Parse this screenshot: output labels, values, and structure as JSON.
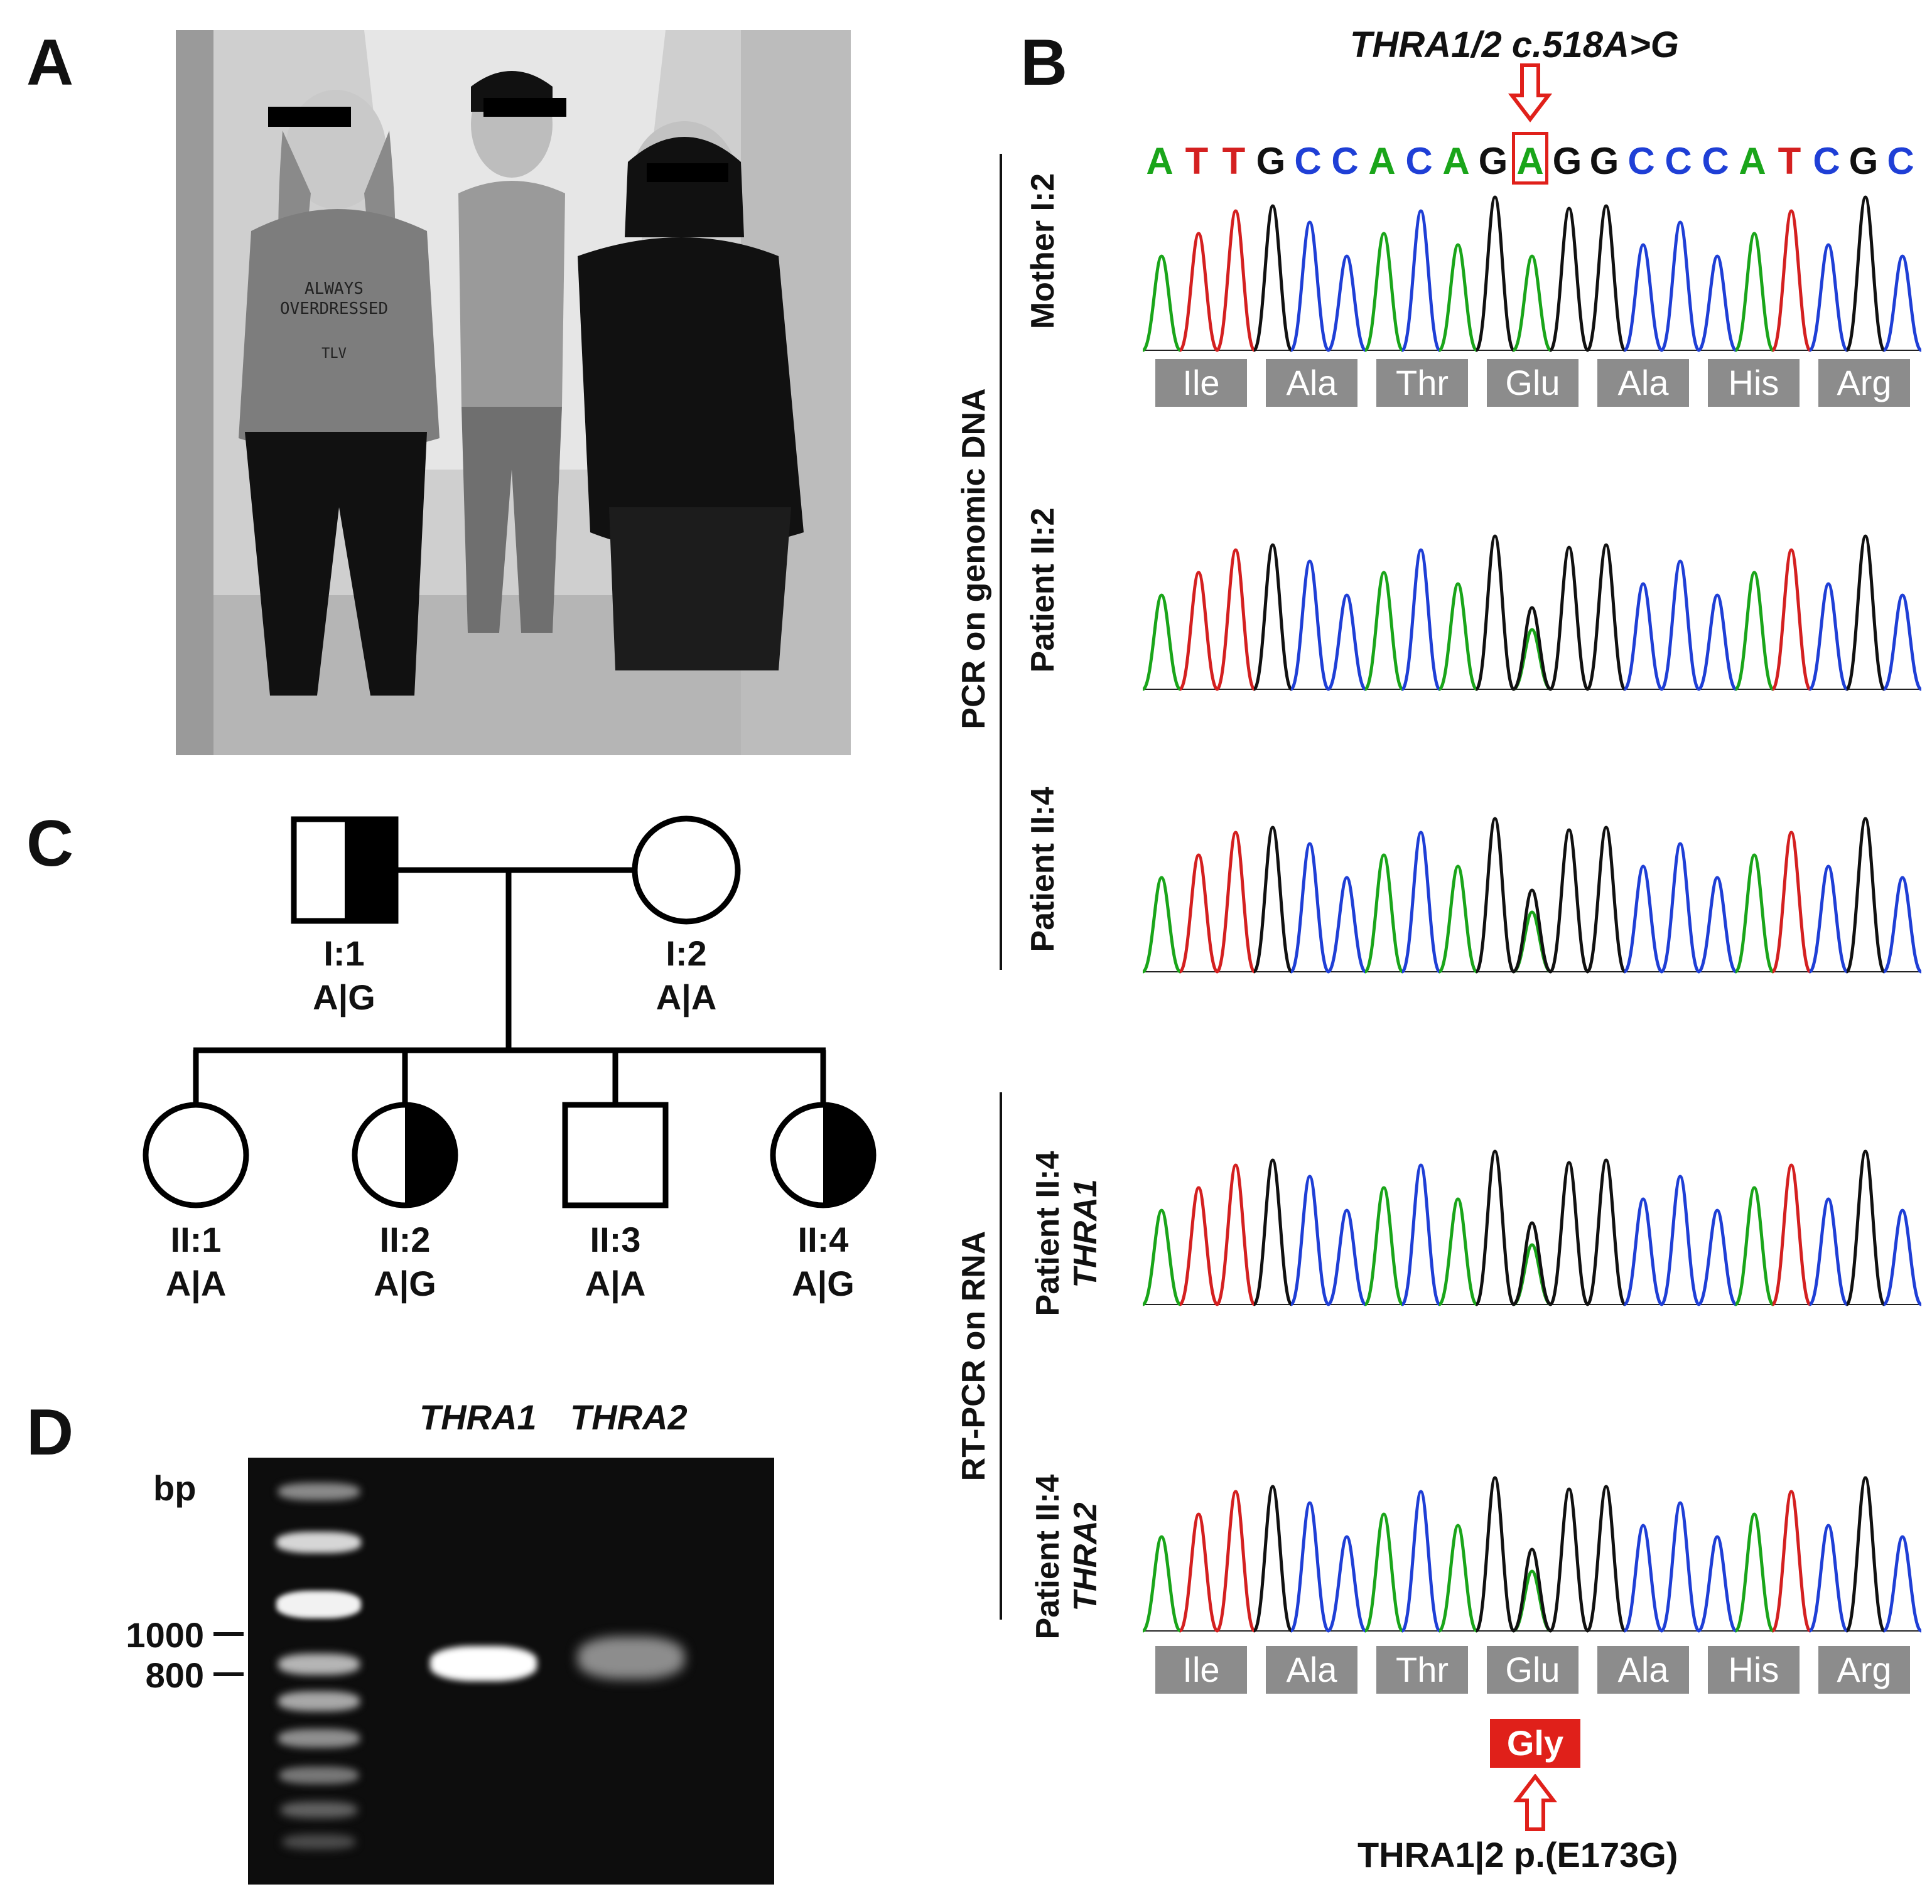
{
  "panels": {
    "a": "A",
    "b": "B",
    "c": "C",
    "d": "D"
  },
  "photo": {
    "shirt_text": [
      "ALWAYS",
      "OVERDRESSED",
      "TLV"
    ]
  },
  "sequencing": {
    "mutation_label": "THRA1/2 c.518A>G",
    "sequence": [
      "A",
      "T",
      "T",
      "G",
      "C",
      "C",
      "A",
      "C",
      "A",
      "G",
      "A",
      "G",
      "G",
      "C",
      "C",
      "C",
      "A",
      "T",
      "C",
      "G",
      "C"
    ],
    "highlighted_index": 10,
    "base_colors": {
      "A": "#1aa51a",
      "T": "#d42020",
      "G": "#111111",
      "C": "#1f3fd6"
    },
    "amino_acids": [
      "Ile",
      "Ala",
      "Thr",
      "Glu",
      "Ala",
      "His",
      "Arg"
    ],
    "mutant_aa": "Gly",
    "protein_label": "THRA1|2 p.(E173G)",
    "group_genomic": "PCR on genomic DNA",
    "group_rna": "RT-PCR on RNA",
    "traces": [
      {
        "label": "Mother I:2",
        "sublabel": ""
      },
      {
        "label": "Patient II:2",
        "sublabel": ""
      },
      {
        "label": "Patient II:4",
        "sublabel": ""
      },
      {
        "label": "Patient II:4",
        "sublabel": "THRA1"
      },
      {
        "label": "Patient II:4",
        "sublabel": "THRA2"
      }
    ],
    "highlight_color": "#e0201a"
  },
  "pedigree": {
    "I1": {
      "id": "I:1",
      "genotype": "A|G"
    },
    "I2": {
      "id": "I:2",
      "genotype": "A|A"
    },
    "II1": {
      "id": "II:1",
      "genotype": "A|A"
    },
    "II2": {
      "id": "II:2",
      "genotype": "A|G"
    },
    "II3": {
      "id": "II:3",
      "genotype": "A|A"
    },
    "II4": {
      "id": "II:4",
      "genotype": "A|G"
    }
  },
  "gel": {
    "unit": "bp",
    "markers": [
      "1000",
      "800"
    ],
    "lanes": [
      "THRA1",
      "THRA2"
    ]
  }
}
